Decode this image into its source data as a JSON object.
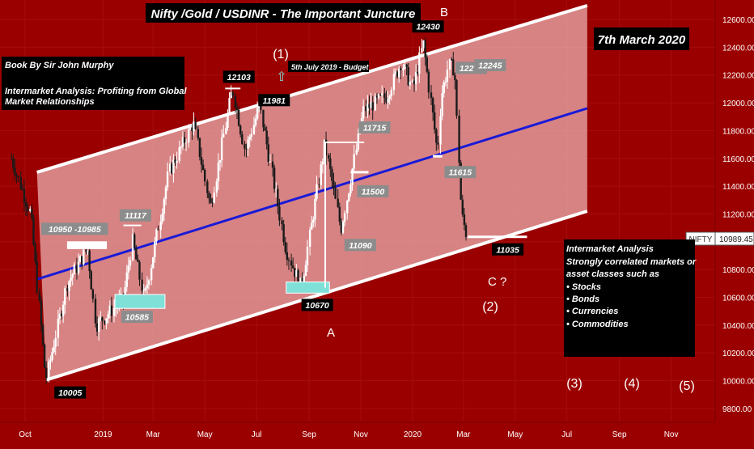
{
  "chart_data": {
    "type": "candlestick",
    "symbol": "NIFTY",
    "title": "Nifty /Gold / USDINR  - The Important Juncture",
    "date_label": "7th March 2020",
    "last_price": "10989.45",
    "y_axis": {
      "ticks": [
        "12600.00",
        "12400.00",
        "12200.00",
        "12000.00",
        "11800.00",
        "11600.00",
        "11400.00",
        "11200.00",
        "11000.00",
        "10800.00",
        "10600.00",
        "10400.00",
        "10200.00",
        "10000.00",
        "9800.00"
      ],
      "range": [
        9700,
        12740
      ]
    },
    "x_axis": {
      "ticks": [
        "Oct",
        "2019",
        "Mar",
        "May",
        "Jul",
        "Sep",
        "Nov",
        "2020",
        "Mar",
        "May",
        "Jul",
        "Sep",
        "Nov"
      ],
      "range": [
        "2018-10-01",
        "2020-11-30"
      ]
    },
    "price_path": [
      [
        "2018-09-15",
        11600
      ],
      [
        "2018-10-08",
        11200
      ],
      [
        "2018-10-26",
        10005
      ],
      [
        "2018-11-20",
        10700
      ],
      [
        "2018-12-14",
        10950
      ],
      [
        "2018-12-24",
        10400
      ],
      [
        "2019-01-25",
        10585
      ],
      [
        "2019-02-05",
        11000
      ],
      [
        "2019-02-19",
        10585
      ],
      [
        "2019-03-20",
        11500
      ],
      [
        "2019-04-18",
        11856
      ],
      [
        "2019-05-08",
        11250
      ],
      [
        "2019-06-03",
        12103
      ],
      [
        "2019-06-18",
        11650
      ],
      [
        "2019-07-05",
        11981
      ],
      [
        "2019-08-05",
        10950
      ],
      [
        "2019-08-23",
        10670
      ],
      [
        "2019-09-20",
        11700
      ],
      [
        "2019-10-09",
        11090
      ],
      [
        "2019-11-05",
        11950
      ],
      [
        "2019-12-02",
        12050
      ],
      [
        "2019-12-19",
        12293
      ],
      [
        "2020-01-02",
        12100
      ],
      [
        "2020-01-14",
        12430
      ],
      [
        "2020-01-31",
        11640
      ],
      [
        "2020-02-04",
        12050
      ],
      [
        "2020-02-13",
        12272
      ],
      [
        "2020-02-20",
        12245
      ],
      [
        "2020-02-28",
        11200
      ],
      [
        "2020-03-06",
        11035
      ]
    ],
    "channel": {
      "upper": [
        [
          "2018-10-15",
          11500
        ],
        [
          "2020-07-25",
          12700
        ]
      ],
      "lower": [
        [
          "2018-10-26",
          10005
        ],
        [
          "2020-07-25",
          11220
        ]
      ],
      "mid": [
        [
          "2018-10-15",
          10730
        ],
        [
          "2020-07-25",
          11960
        ]
      ]
    },
    "labels": [
      {
        "text": "10950 -10985",
        "date": "2018-12-05",
        "value": 10985
      },
      {
        "text": "11117",
        "date": "2019-02-01",
        "value": 11117
      },
      {
        "text": "10585",
        "date": "2019-02-01",
        "value": 10585
      },
      {
        "text": "12103",
        "date": "2019-06-03",
        "value": 12103
      },
      {
        "text": "11981",
        "date": "2019-07-05",
        "value": 11981
      },
      {
        "text": "11715",
        "date": "2019-10-20",
        "value": 11715
      },
      {
        "text": "11500",
        "date": "2019-10-20",
        "value": 11500
      },
      {
        "text": "11090",
        "date": "2019-10-09",
        "value": 11090
      },
      {
        "text": "10670",
        "date": "2019-08-23",
        "value": 10670
      },
      {
        "text": "12430",
        "date": "2020-01-14",
        "value": 12430
      },
      {
        "text": "12272",
        "date": "2020-02-13",
        "value": 12272
      },
      {
        "text": "12245",
        "date": "2020-02-20",
        "value": 12245
      },
      {
        "text": "11615",
        "date": "2020-01-31",
        "value": 11615
      },
      {
        "text": "10005",
        "date": "2018-10-26",
        "value": 10005
      },
      {
        "text": "11035",
        "date": "2020-03-06",
        "value": 11035
      }
    ],
    "annotations": {
      "budget_marker": "(1)",
      "budget_note": "5th July 2019 - Budget",
      "wave_b": "B",
      "wave_a": "A",
      "wave_c": "C  ?",
      "wave_2": "(2)",
      "wave_3": "(3)",
      "wave_4": "(4)",
      "wave_5": "(5)"
    }
  },
  "book_box": {
    "line1": "Book By   Sir John Murphy",
    "line2": "Intermarket Analysis: Profiting from Global",
    "line3": "Market Relationships"
  },
  "info_box": {
    "line1": "Intermarket Analysis",
    "line2": "Strongly correlated markets or",
    "line3": "asset classes such as",
    "items": [
      "• Stocks",
      "• Bonds",
      "• Currencies",
      "• Commodities"
    ]
  },
  "colors": {
    "background": "#9b0000",
    "channel_fill": "#e8a8a8",
    "channel_border": "#ffffff",
    "midline": "#1a1ad6",
    "candle": "#ffffff",
    "candle_dark": "#1a1a1a",
    "label_box": "#8c8c8c",
    "highlight": "#7fe0d8"
  }
}
